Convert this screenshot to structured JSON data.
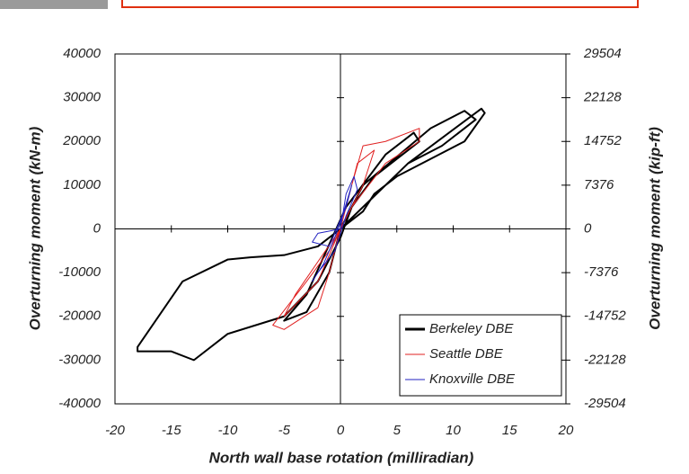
{
  "chart_data": {
    "type": "line",
    "xlabel": "North wall base rotation (milliradian)",
    "ylabel": "Overturning moment (kN-m)",
    "y2label": "Overturning moment (kip-ft)",
    "xlim": [
      -20,
      20
    ],
    "xticks": [
      -20,
      -15,
      -10,
      -5,
      0,
      5,
      10,
      15,
      20
    ],
    "ylim": [
      -40000,
      40000
    ],
    "yticks": [
      -40000,
      -30000,
      -20000,
      -10000,
      0,
      10000,
      20000,
      30000,
      40000
    ],
    "y2lim": [
      -29504,
      29504
    ],
    "y2ticks": [
      -29504,
      -22128,
      -14752,
      -7376,
      0,
      7376,
      14752,
      22128,
      29504
    ],
    "legend": "lower right",
    "series": [
      {
        "name": "Berkeley DBE",
        "color": "#000000",
        "x": [
          0,
          2,
          6,
          12.5,
          12.8,
          11,
          5,
          3,
          2,
          -2,
          -5,
          -8,
          -10,
          -14,
          -18,
          -18,
          -15,
          -13,
          -10,
          -5,
          -2,
          0,
          1,
          3,
          7,
          6.5,
          4,
          0.5,
          -3,
          -5,
          -3,
          -1,
          0,
          6,
          9,
          12,
          11,
          8,
          2,
          0
        ],
        "values": [
          0,
          5000,
          15000,
          27500,
          26500,
          20000,
          12000,
          8000,
          4000,
          -4000,
          -6000,
          -6500,
          -7000,
          -12000,
          -27000,
          -28000,
          -28000,
          -30000,
          -24000,
          -20000,
          -12000,
          -2000,
          5000,
          12000,
          20000,
          22000,
          17000,
          5000,
          -15000,
          -21000,
          -19000,
          -10000,
          0,
          15000,
          19000,
          25000,
          27000,
          23000,
          10000,
          0
        ]
      },
      {
        "name": "Seattle DBE",
        "color": "#e02020",
        "x": [
          0,
          1,
          2,
          4,
          7,
          7,
          4,
          1,
          -1,
          -3,
          -6,
          -5,
          -2,
          -1,
          0,
          1.5,
          3,
          2,
          0,
          -4,
          -5,
          -2,
          0
        ],
        "values": [
          0,
          10000,
          19000,
          20000,
          23000,
          20000,
          15000,
          5000,
          -5000,
          -12000,
          -22000,
          -23000,
          -18000,
          -10000,
          0,
          15000,
          18000,
          10000,
          0,
          -15000,
          -20000,
          -12000,
          0
        ]
      },
      {
        "name": "Knoxville DBE",
        "color": "#2020c0",
        "x": [
          0,
          0.5,
          1.2,
          1.5,
          0.5,
          -0.5,
          -2,
          -2.5,
          -1.5,
          -0.5,
          0.5,
          1,
          0.3,
          -1,
          -2.5,
          -2,
          0
        ],
        "values": [
          0,
          8000,
          12000,
          9000,
          3000,
          -5000,
          -10000,
          -12000,
          -8000,
          -2000,
          5000,
          10000,
          4000,
          -4000,
          -3000,
          -1000,
          0
        ]
      }
    ]
  }
}
